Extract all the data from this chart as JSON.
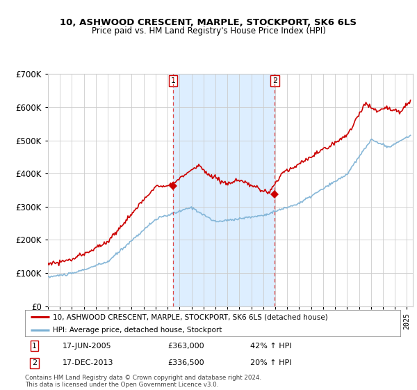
{
  "title": "10, ASHWOOD CRESCENT, MARPLE, STOCKPORT, SK6 6LS",
  "subtitle": "Price paid vs. HM Land Registry's House Price Index (HPI)",
  "legend_line1": "10, ASHWOOD CRESCENT, MARPLE, STOCKPORT, SK6 6LS (detached house)",
  "legend_line2": "HPI: Average price, detached house, Stockport",
  "footer": "Contains HM Land Registry data © Crown copyright and database right 2024.\nThis data is licensed under the Open Government Licence v3.0.",
  "transaction1_label": "1",
  "transaction1_date": "17-JUN-2005",
  "transaction1_price": "£363,000",
  "transaction1_hpi": "42% ↑ HPI",
  "transaction2_label": "2",
  "transaction2_date": "17-DEC-2013",
  "transaction2_price": "£336,500",
  "transaction2_hpi": "20% ↑ HPI",
  "marker1_year": 2005.46,
  "marker1_value": 363000,
  "marker2_year": 2013.96,
  "marker2_value": 336500,
  "vline1_year": 2005.46,
  "vline2_year": 2013.96,
  "ylim": [
    0,
    700000
  ],
  "xlim_start": 1995,
  "xlim_end": 2025.5,
  "red_color": "#cc0000",
  "blue_color": "#7ab0d4",
  "shading_color": "#ddeeff",
  "background_color": "#ffffff",
  "grid_color": "#cccccc",
  "title_fontsize": 9.5,
  "subtitle_fontsize": 8.5
}
